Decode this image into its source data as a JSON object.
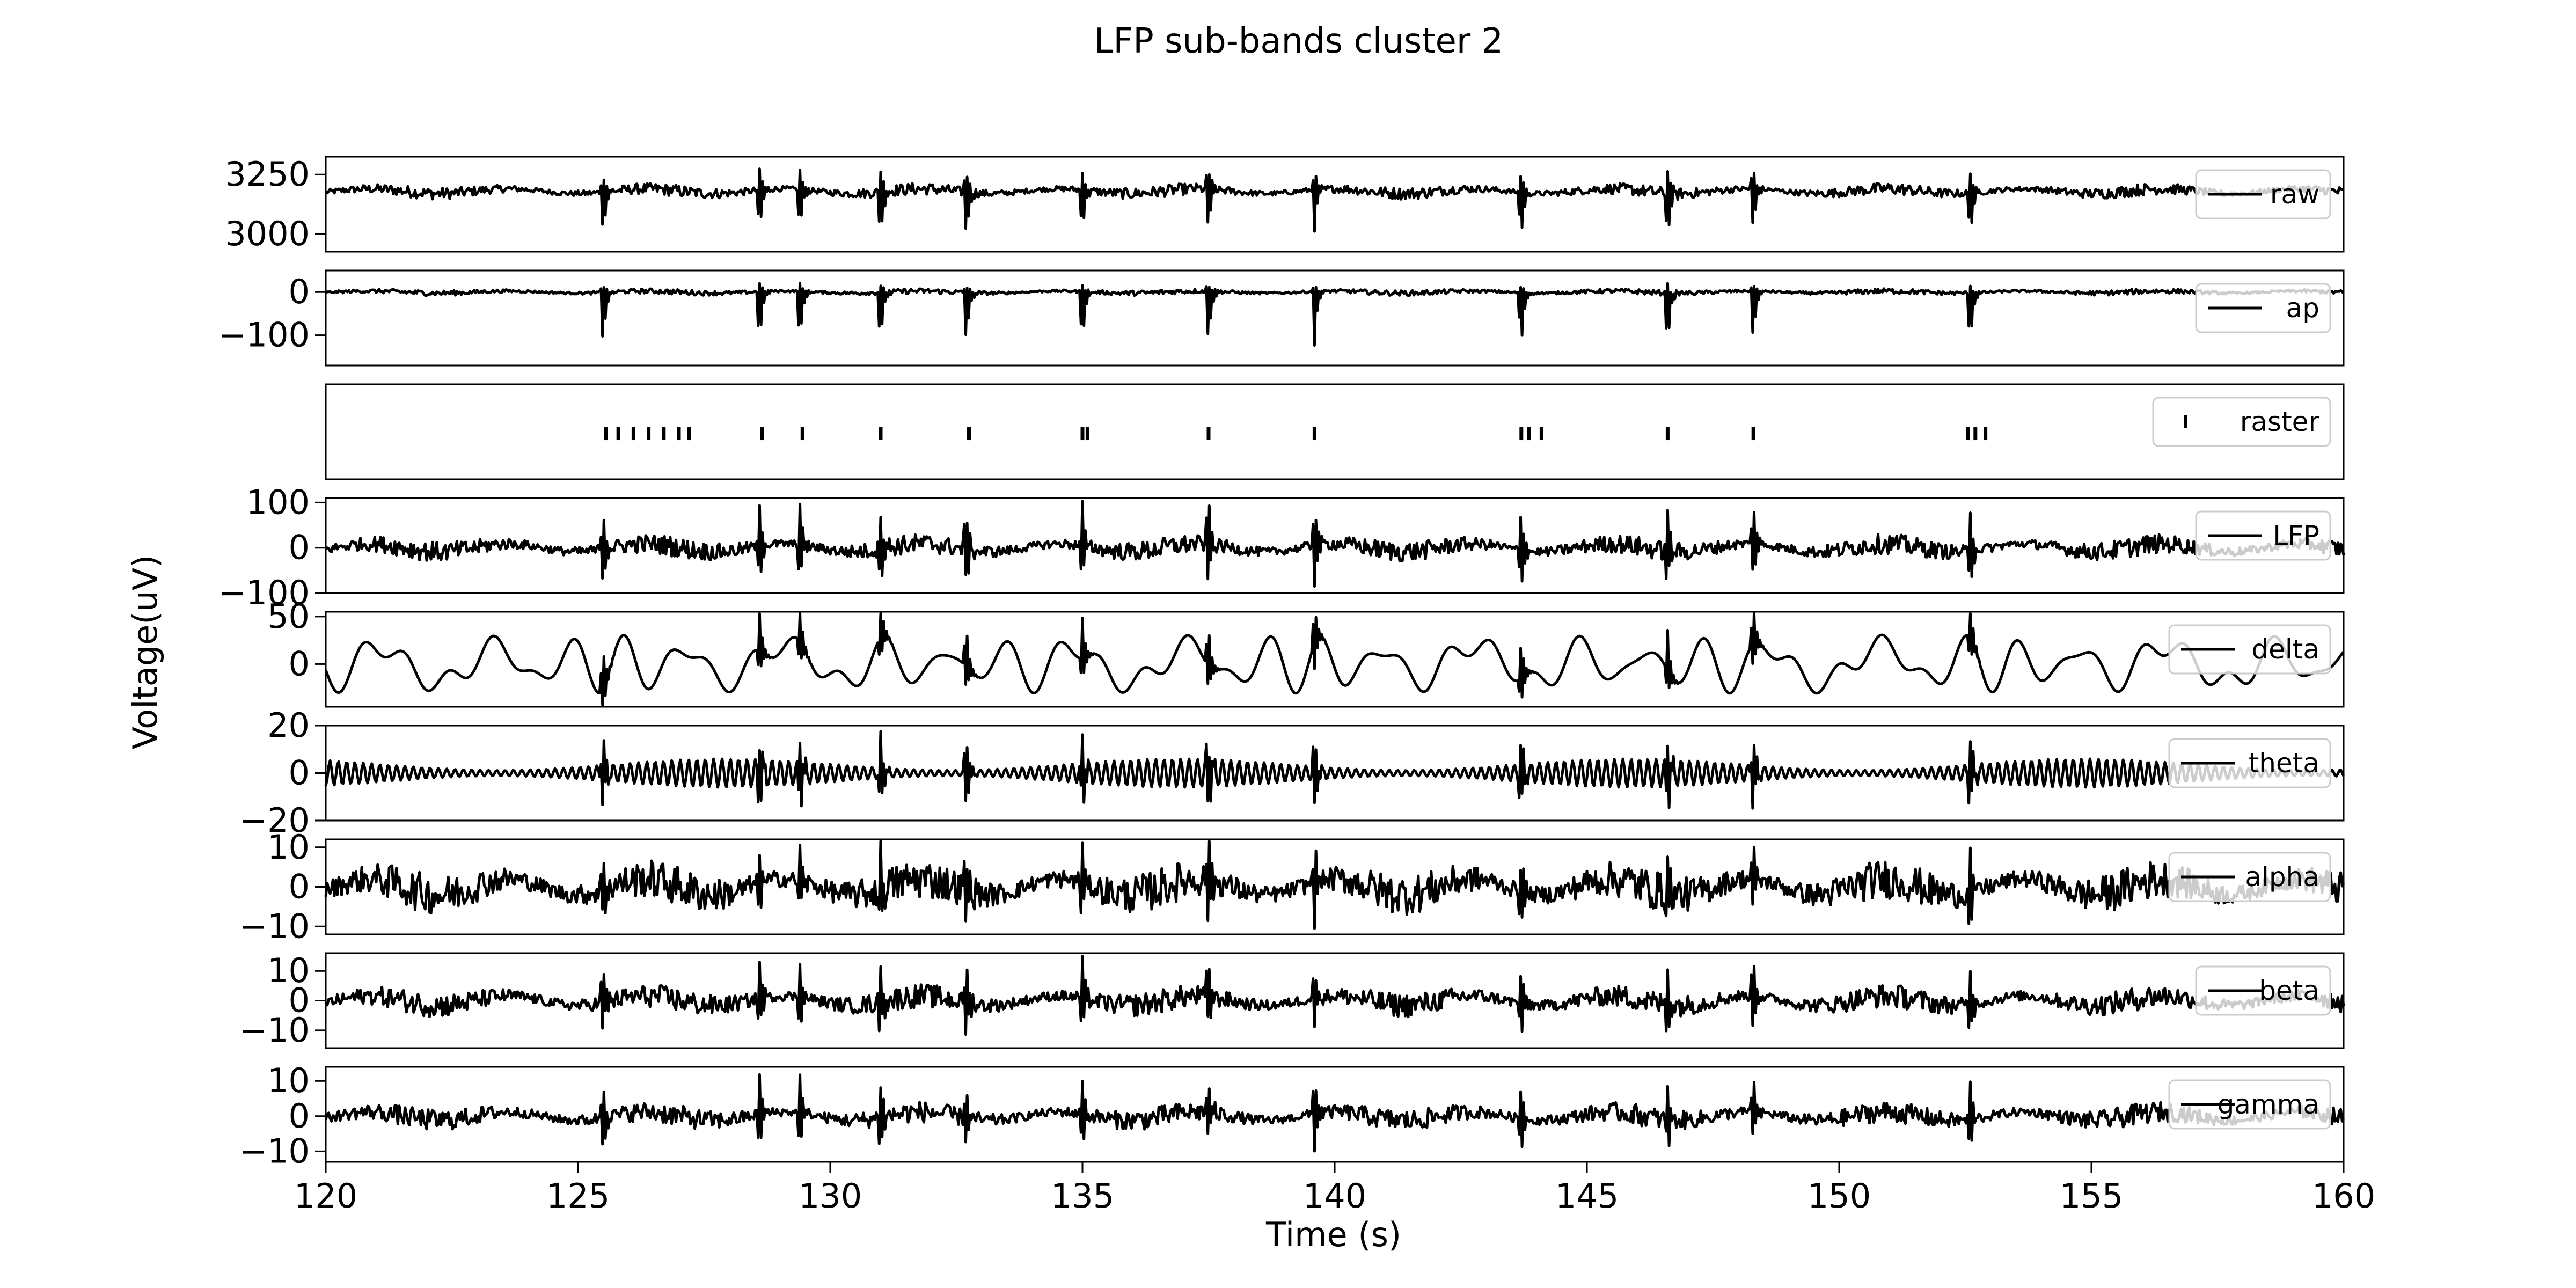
{
  "figure_title": "LFP sub-bands cluster 2",
  "chart_data": {
    "type": "line",
    "title": "LFP sub-bands cluster 2",
    "xlabel": "Time (s)",
    "ylabel": "Voltage(uV)",
    "xlim": [
      120,
      160
    ],
    "x_ticks": [
      "120",
      "125",
      "130",
      "135",
      "140",
      "145",
      "150",
      "155",
      "160"
    ],
    "x_tick_values": [
      120,
      125,
      130,
      135,
      140,
      145,
      150,
      155,
      160
    ],
    "line_color": "#000000",
    "legend_line_color": "#000000",
    "noise_overlay_color": "#c8c8c8",
    "legend_position": "right",
    "burst_times_s": [
      125.5,
      128.6,
      129.4,
      131.0,
      132.7,
      135.0,
      137.5,
      139.6,
      143.7,
      146.6,
      148.3,
      152.6
    ],
    "panels": [
      {
        "name": "raw",
        "ylim": [
          2925,
          3325
        ],
        "yticks": [
          3000,
          3250
        ],
        "ytick_labels": [
          "3000",
          "3250"
        ],
        "baseline": 3180,
        "typical_amplitude": 25,
        "spike_min": 2960,
        "spike_max": 3280
      },
      {
        "name": "ap",
        "ylim": [
          -170,
          50
        ],
        "yticks": [
          -100,
          0
        ],
        "ytick_labels": [
          "−100",
          "0"
        ],
        "baseline": 0,
        "typical_amplitude": 6,
        "spike_min": -150,
        "spike_max": 20
      },
      {
        "name": "raster",
        "ylim": [
          0,
          1
        ],
        "yticks": [],
        "ytick_labels": [],
        "marker": "|",
        "spike_times_s": [
          125.55,
          125.8,
          126.1,
          126.4,
          126.7,
          127.0,
          127.2,
          128.65,
          129.45,
          131.0,
          132.75,
          135.0,
          135.1,
          137.5,
          139.6,
          143.7,
          143.85,
          144.1,
          146.6,
          148.3,
          152.55,
          152.7,
          152.9
        ]
      },
      {
        "name": "LFP",
        "ylim": [
          -100,
          110
        ],
        "yticks": [
          -100,
          0,
          100
        ],
        "ytick_labels": [
          "−100",
          "0",
          "100"
        ],
        "baseline": 0,
        "typical_amplitude": 22,
        "spike_min": -95,
        "spike_max": 105
      },
      {
        "name": "delta",
        "ylim": [
          -45,
          55
        ],
        "yticks": [
          0,
          50
        ],
        "ytick_labels": [
          "0",
          "50"
        ],
        "baseline": 0,
        "typical_amplitude": 22,
        "spike_min": -30,
        "spike_max": 50
      },
      {
        "name": "theta",
        "ylim": [
          -20,
          20
        ],
        "yticks": [
          -20,
          0,
          20
        ],
        "ytick_labels": [
          "−20",
          "0",
          "20"
        ],
        "baseline": 0,
        "typical_amplitude": 6,
        "spike_min": -18,
        "spike_max": 18
      },
      {
        "name": "alpha",
        "ylim": [
          -12,
          12
        ],
        "yticks": [
          -10,
          0,
          10
        ],
        "ytick_labels": [
          "−10",
          "0",
          "10"
        ],
        "baseline": 0,
        "typical_amplitude": 5,
        "spike_min": -11,
        "spike_max": 11
      },
      {
        "name": "beta",
        "ylim": [
          -16,
          16
        ],
        "yticks": [
          -10,
          0,
          10
        ],
        "ytick_labels": [
          "−10",
          "0",
          "10"
        ],
        "baseline": 0,
        "typical_amplitude": 4,
        "spike_min": -13,
        "spike_max": 14
      },
      {
        "name": "gamma",
        "ylim": [
          -13,
          14
        ],
        "yticks": [
          -10,
          0,
          10
        ],
        "ytick_labels": [
          "−10",
          "0",
          "10"
        ],
        "baseline": 0,
        "typical_amplitude": 3,
        "spike_min": -11,
        "spike_max": 12
      }
    ]
  }
}
